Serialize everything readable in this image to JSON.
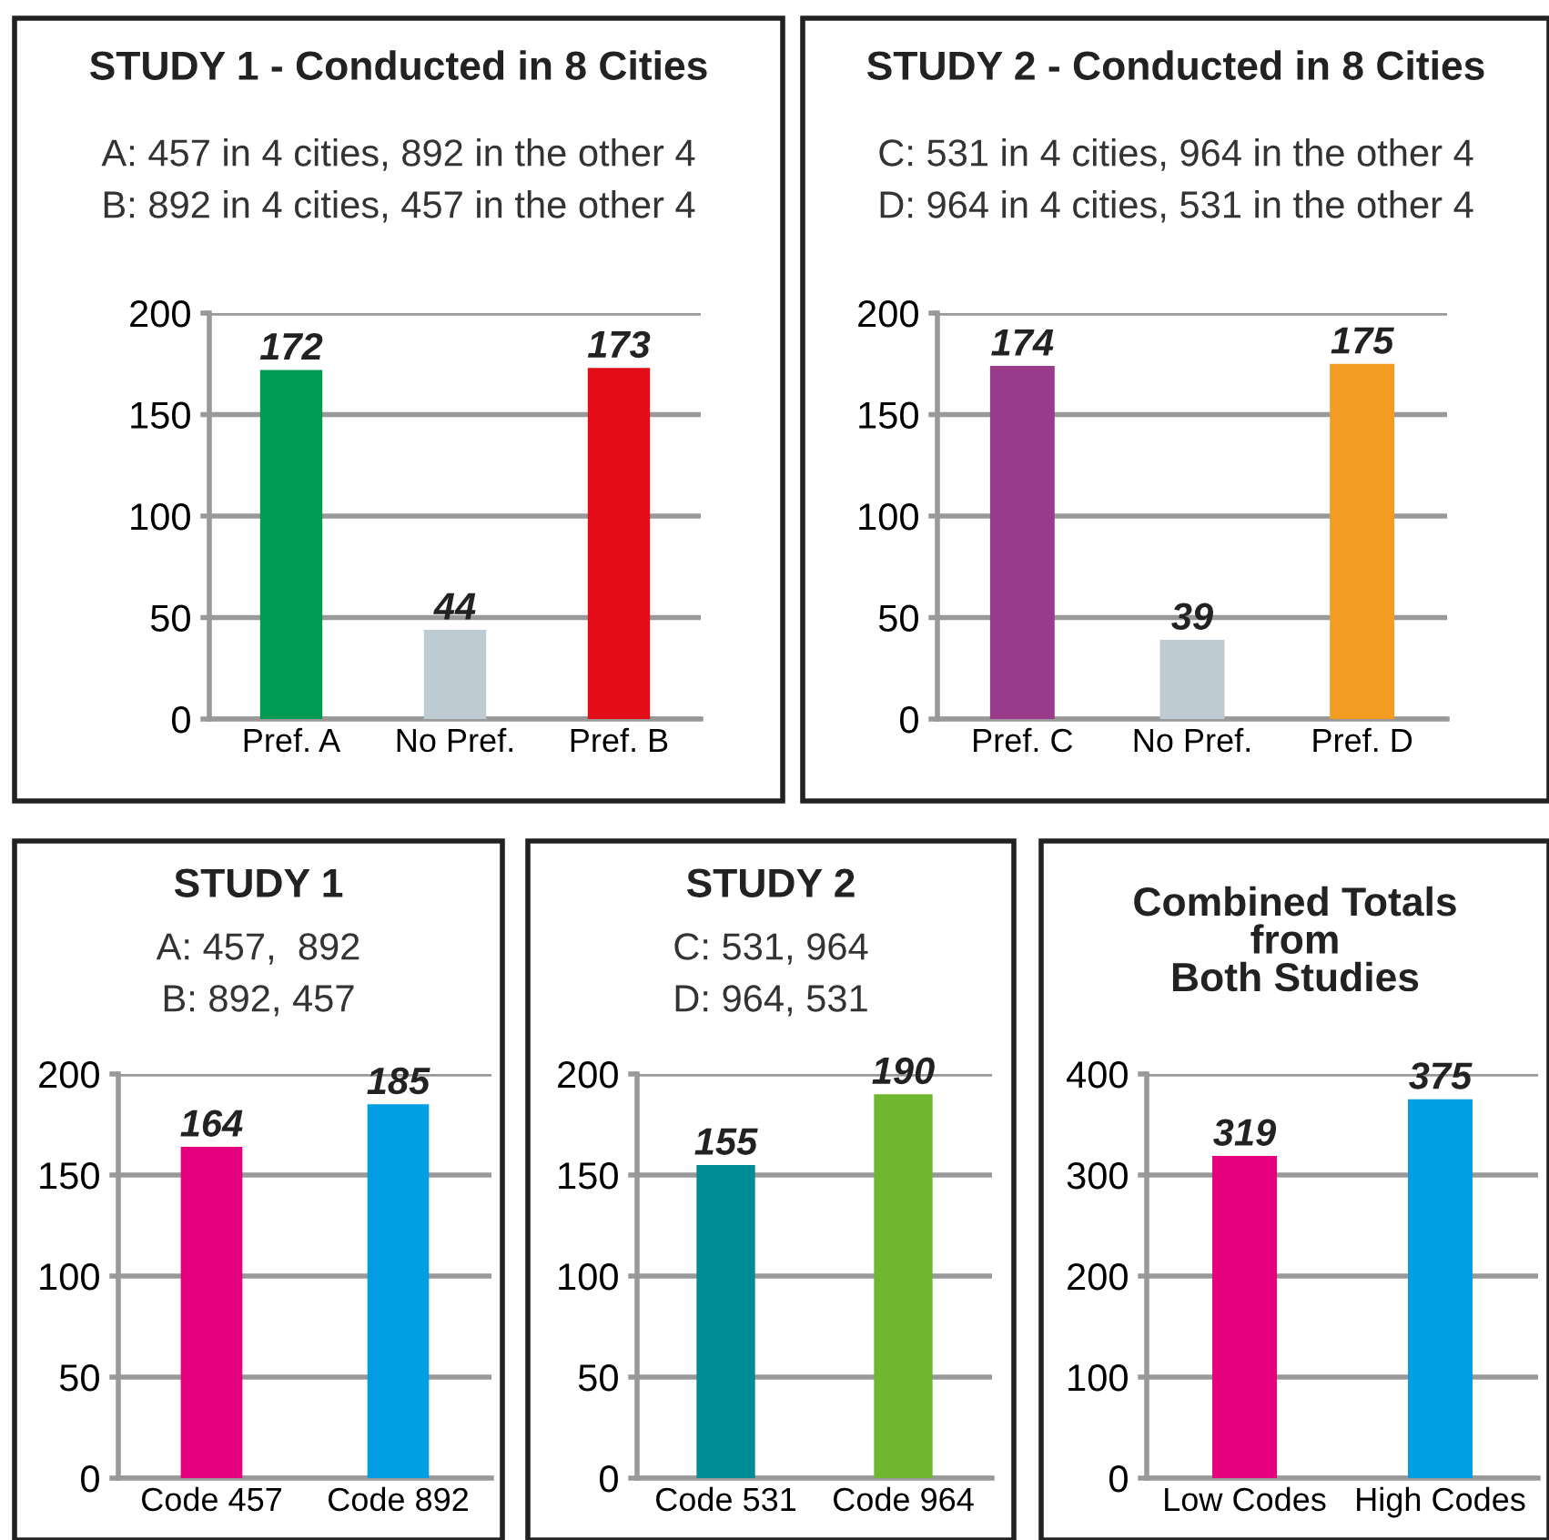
{
  "chart_data": [
    {
      "type": "bar",
      "title": "STUDY 1 - Conducted in 8 Cities",
      "subtitle": "A: 457 in 4 cities, 892 in the other 4\nB: 892 in 4 cities, 457 in the other 4",
      "categories": [
        "Pref. A",
        "No Pref.",
        "Pref. B"
      ],
      "values": [
        172,
        44,
        173
      ],
      "colors": [
        "#009a54",
        "#bfcbd3",
        "#e30d18"
      ],
      "ylim": [
        0,
        200
      ],
      "yticks": [
        0,
        50,
        100,
        150,
        200
      ],
      "grid": "y",
      "data_labels": true
    },
    {
      "type": "bar",
      "title": "STUDY 2 - Conducted in 8 Cities",
      "subtitle": "C: 531 in 4 cities, 964 in the other 4\nD: 964 in 4 cities, 531 in the other 4",
      "categories": [
        "Pref. C",
        "No Pref.",
        "Pref. D"
      ],
      "values": [
        174,
        39,
        175
      ],
      "colors": [
        "#993a8b",
        "#bfcbd3",
        "#f39c22"
      ],
      "ylim": [
        0,
        200
      ],
      "yticks": [
        0,
        50,
        100,
        150,
        200
      ],
      "grid": "y",
      "data_labels": true
    },
    {
      "type": "bar",
      "title": "STUDY 1",
      "subtitle": "A: 457,  892\nB: 892, 457",
      "categories": [
        "Code 457",
        "Code 892"
      ],
      "values": [
        164,
        185
      ],
      "colors": [
        "#e5007e",
        "#009fe3"
      ],
      "ylim": [
        0,
        200
      ],
      "yticks": [
        0,
        50,
        100,
        150,
        200
      ],
      "grid": "y",
      "data_labels": true
    },
    {
      "type": "bar",
      "title": "STUDY 2",
      "subtitle": "C: 531, 964\nD: 964, 531",
      "categories": [
        "Code 531",
        "Code 964"
      ],
      "values": [
        155,
        190
      ],
      "colors": [
        "#008c95",
        "#6fb72f"
      ],
      "ylim": [
        0,
        200
      ],
      "yticks": [
        0,
        50,
        100,
        150,
        200
      ],
      "grid": "y",
      "data_labels": true
    },
    {
      "type": "bar",
      "title": "Combined Totals\nfrom\nBoth Studies",
      "categories": [
        "Low Codes",
        "High Codes"
      ],
      "values": [
        319,
        375
      ],
      "colors": [
        "#e5007e",
        "#009fe3"
      ],
      "ylim": [
        0,
        400
      ],
      "yticks": [
        0,
        100,
        200,
        300,
        400
      ],
      "grid": "y",
      "data_labels": true
    }
  ]
}
